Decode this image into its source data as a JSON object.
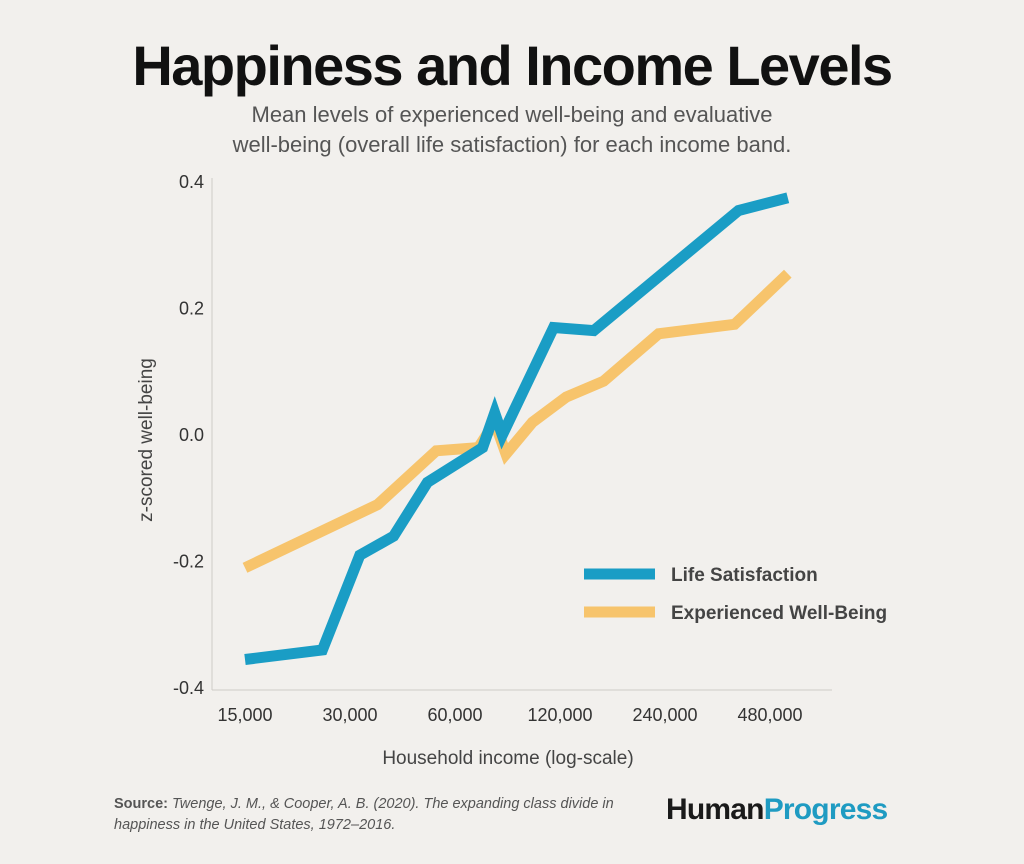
{
  "header": {
    "title": "Happiness and Income Levels",
    "subtitle_line1": "Mean levels of experienced well-being and evaluative",
    "subtitle_line2": "well-being (overall life satisfaction) for each income band."
  },
  "chart_data": {
    "type": "line",
    "xlabel": "Household income (log-scale)",
    "ylabel": "z-scored well-being",
    "x_scale": "log",
    "x_ticks": [
      15000,
      30000,
      60000,
      120000,
      240000,
      480000
    ],
    "x_tick_labels": [
      "15,000",
      "30,000",
      "60,000",
      "120,000",
      "240,000",
      "480,000"
    ],
    "ylim": [
      -0.4,
      0.4
    ],
    "y_ticks": [
      -0.4,
      -0.2,
      0.0,
      0.2,
      0.4
    ],
    "y_tick_labels": [
      "-0.4",
      "-0.2",
      "0.0",
      "0.2",
      "0.4"
    ],
    "grid": false,
    "legend_position": "lower-right",
    "series": [
      {
        "name": "Life Satisfaction",
        "color": "#1a9dc5",
        "points": [
          [
            15000,
            -0.355
          ],
          [
            25000,
            -0.34
          ],
          [
            32000,
            -0.19
          ],
          [
            40000,
            -0.16
          ],
          [
            50000,
            -0.075
          ],
          [
            72000,
            -0.02
          ],
          [
            78000,
            0.035
          ],
          [
            82000,
            0.0
          ],
          [
            115000,
            0.17
          ],
          [
            150000,
            0.165
          ],
          [
            390000,
            0.355
          ],
          [
            540000,
            0.375
          ]
        ]
      },
      {
        "name": "Experienced Well-Being",
        "color": "#f7c46c",
        "points": [
          [
            15000,
            -0.21
          ],
          [
            36000,
            -0.11
          ],
          [
            53000,
            -0.025
          ],
          [
            70000,
            -0.02
          ],
          [
            78000,
            0.02
          ],
          [
            84000,
            -0.03
          ],
          [
            100000,
            0.02
          ],
          [
            125000,
            0.06
          ],
          [
            160000,
            0.085
          ],
          [
            230000,
            0.16
          ],
          [
            380000,
            0.175
          ],
          [
            540000,
            0.255
          ]
        ]
      }
    ]
  },
  "footer": {
    "source_label": "Source:",
    "source_text": "Twenge, J. M., & Cooper, A. B. (2020). The expanding class divide in happiness in the United States, 1972–2016.",
    "logo_part1": "Human",
    "logo_part2": "Progress"
  }
}
